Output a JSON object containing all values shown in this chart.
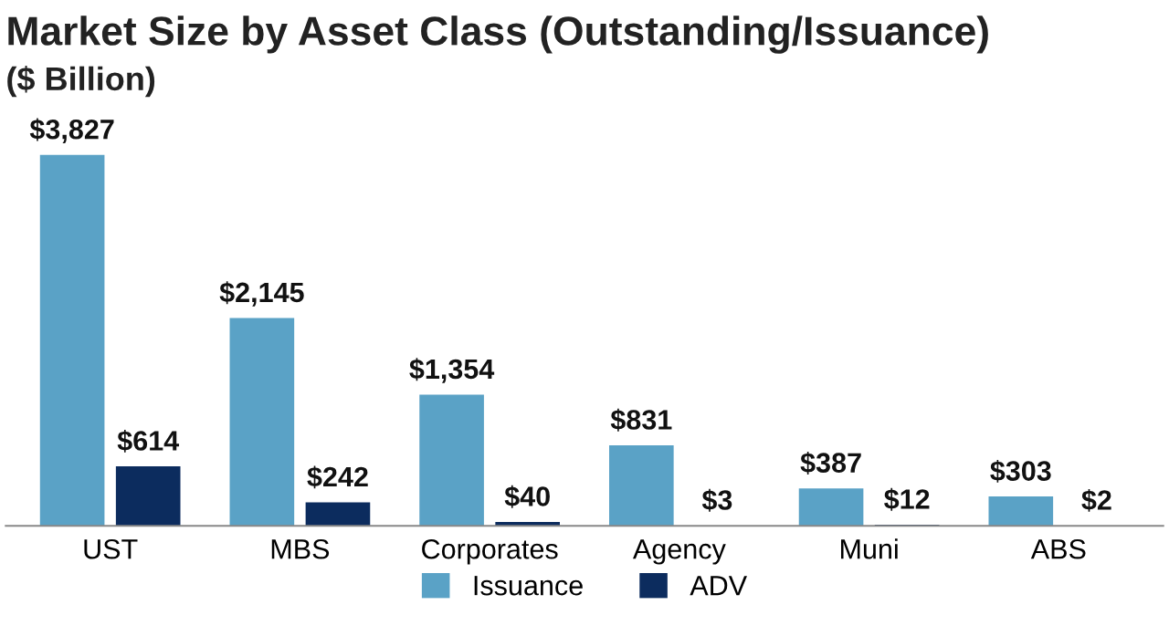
{
  "chart_data": {
    "type": "bar",
    "title": "Market Size by Asset Class (Outstanding/Issuance)",
    "subtitle": "($ Billion)",
    "categories": [
      "UST",
      "MBS",
      "Corporates",
      "Agency",
      "Muni",
      "ABS"
    ],
    "series": [
      {
        "name": "Issuance",
        "color": "#5aa2c6",
        "values": [
          3827,
          2145,
          1354,
          831,
          387,
          303
        ],
        "value_labels": [
          "$3,827",
          "$2,145",
          "$1,354",
          "$831",
          "$387",
          "$303"
        ]
      },
      {
        "name": "ADV",
        "color": "#0c2c5e",
        "values": [
          614,
          242,
          40,
          3,
          12,
          2
        ],
        "value_labels": [
          "$614",
          "$242",
          "$40",
          "$3",
          "$12",
          "$2"
        ]
      }
    ],
    "legend": "bottom",
    "grid": false
  }
}
